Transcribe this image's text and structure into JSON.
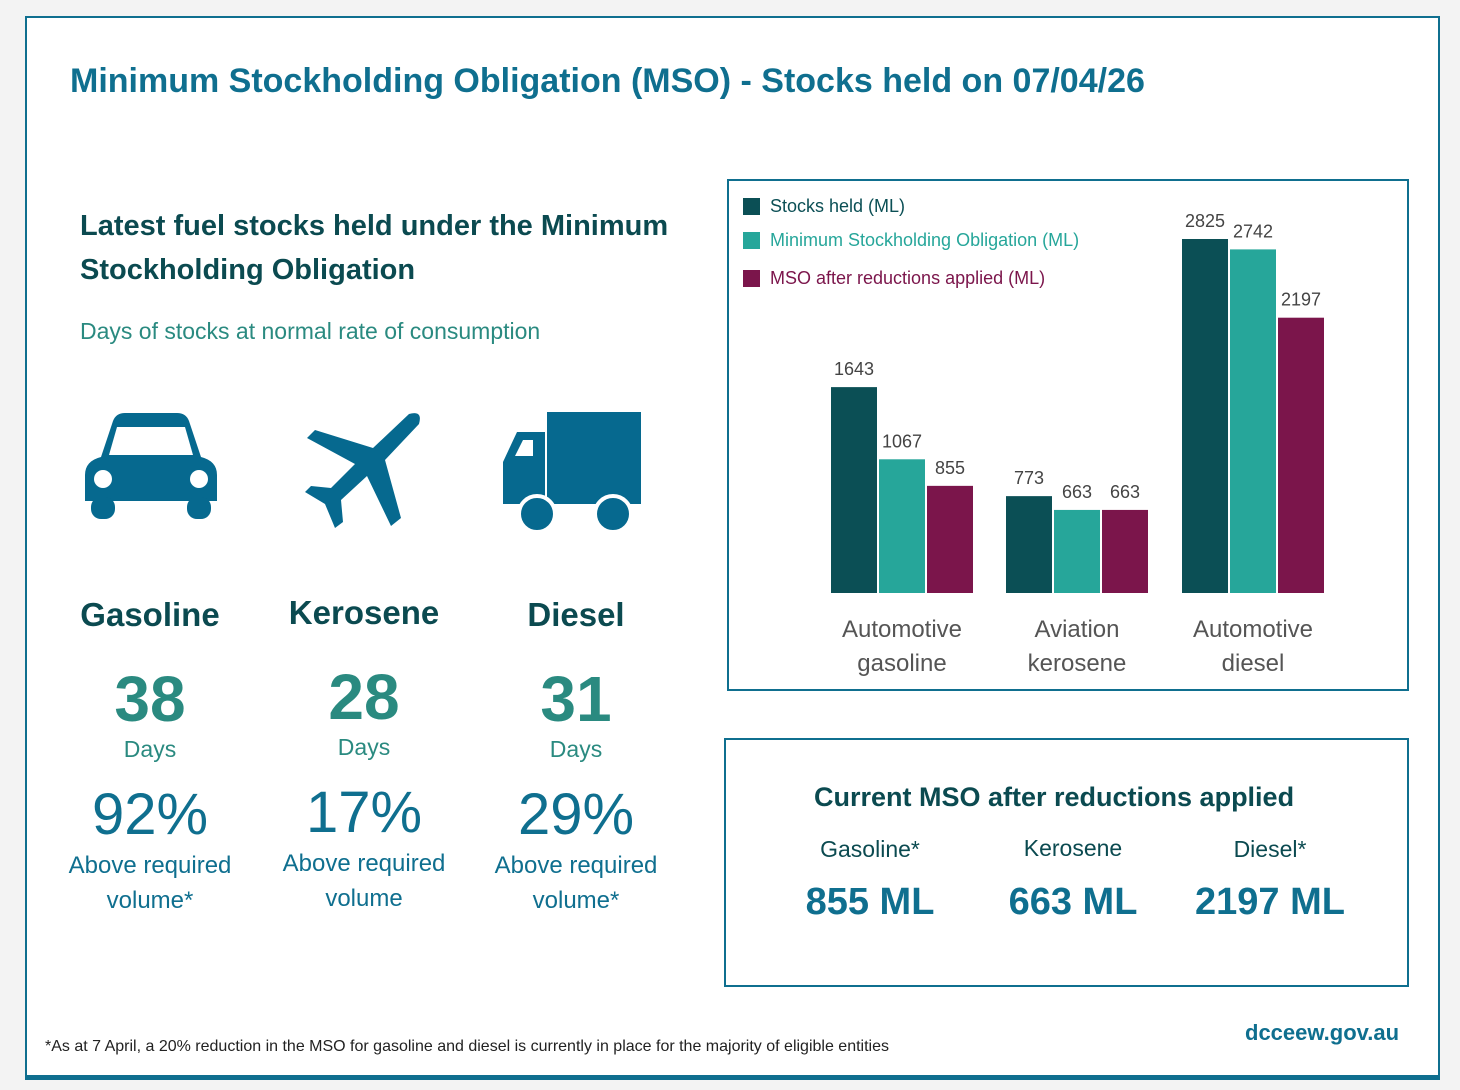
{
  "title": "Minimum Stockholding Obligation (MSO) - Stocks held on 07/04/26",
  "subtitle": "Latest fuel stocks held under the Minimum Stockholding Obligation",
  "days_label": "Days of stocks at normal rate of consumption",
  "fuels": [
    {
      "name": "Gasoline",
      "icon": "car-icon",
      "days": "38",
      "days_unit": "Days",
      "percent": "92%",
      "above": "Above required volume*"
    },
    {
      "name": "Kerosene",
      "icon": "airplane-icon",
      "days": "28",
      "days_unit": "Days",
      "percent": "17%",
      "above": "Above required volume"
    },
    {
      "name": "Diesel",
      "icon": "truck-icon",
      "days": "31",
      "days_unit": "Days",
      "percent": "29%",
      "above": "Above required volume*"
    }
  ],
  "colors": {
    "stocks": "#0b4f55",
    "mso": "#26a69a",
    "reduced": "#7b154b",
    "brand": "#0f6f8f"
  },
  "chart_data": {
    "type": "bar",
    "categories": [
      "Automotive gasoline",
      "Aviation kerosene",
      "Automotive diesel"
    ],
    "series": [
      {
        "name": "Stocks held (ML)",
        "values": [
          1643,
          773,
          2825
        ]
      },
      {
        "name": "Minimum Stockholding Obligation (ML)",
        "values": [
          1067,
          663,
          2742
        ]
      },
      {
        "name": "MSO after reductions applied (ML)",
        "values": [
          855,
          663,
          2197
        ]
      }
    ],
    "ylim": [
      0,
      2825
    ],
    "legend": "top-left",
    "grid": false
  },
  "mso_box": {
    "title": "Current MSO after reductions applied",
    "items": [
      {
        "label": "Gasoline*",
        "value": "855 ML"
      },
      {
        "label": "Kerosene",
        "value": "663 ML"
      },
      {
        "label": "Diesel*",
        "value": "2197 ML"
      }
    ]
  },
  "footnote": "*As at 7 April, a 20% reduction in the MSO for gasoline and diesel is currently in place for the majority of eligible entities",
  "site": "dcceew.gov.au"
}
